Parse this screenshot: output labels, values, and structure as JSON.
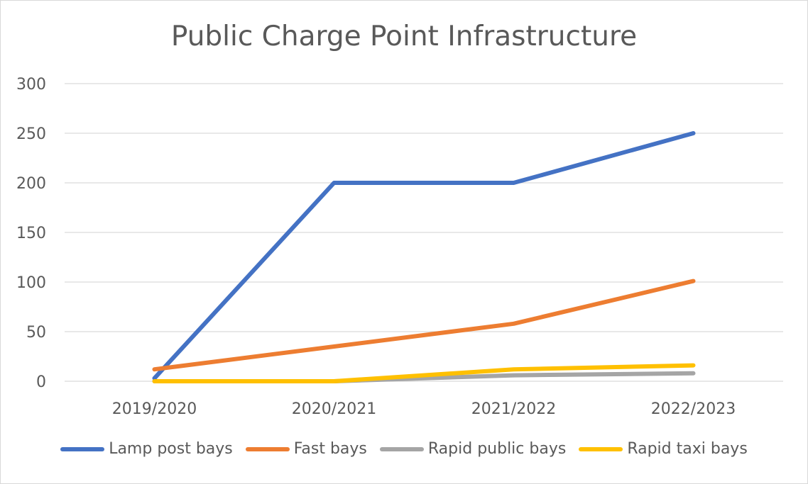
{
  "chart_data": {
    "type": "line",
    "title": "Public Charge Point Infrastructure",
    "xlabel": "",
    "ylabel": "",
    "categories": [
      "2019/2020",
      "2020/2021",
      "2021/2022",
      "2022/2023"
    ],
    "ylim": [
      0,
      300
    ],
    "yticks": [
      0,
      50,
      100,
      150,
      200,
      250,
      300
    ],
    "grid": true,
    "legend_position": "bottom",
    "series": [
      {
        "name": "Lamp post bays",
        "color": "#4472C4",
        "values": [
          3,
          200,
          200,
          250
        ]
      },
      {
        "name": "Fast bays",
        "color": "#ED7D31",
        "values": [
          12,
          35,
          58,
          101
        ]
      },
      {
        "name": "Rapid public bays",
        "color": "#A5A5A5",
        "values": [
          0,
          0,
          6,
          8
        ]
      },
      {
        "name": "Rapid taxi bays",
        "color": "#FFC000",
        "values": [
          0,
          0,
          12,
          16
        ]
      }
    ]
  }
}
